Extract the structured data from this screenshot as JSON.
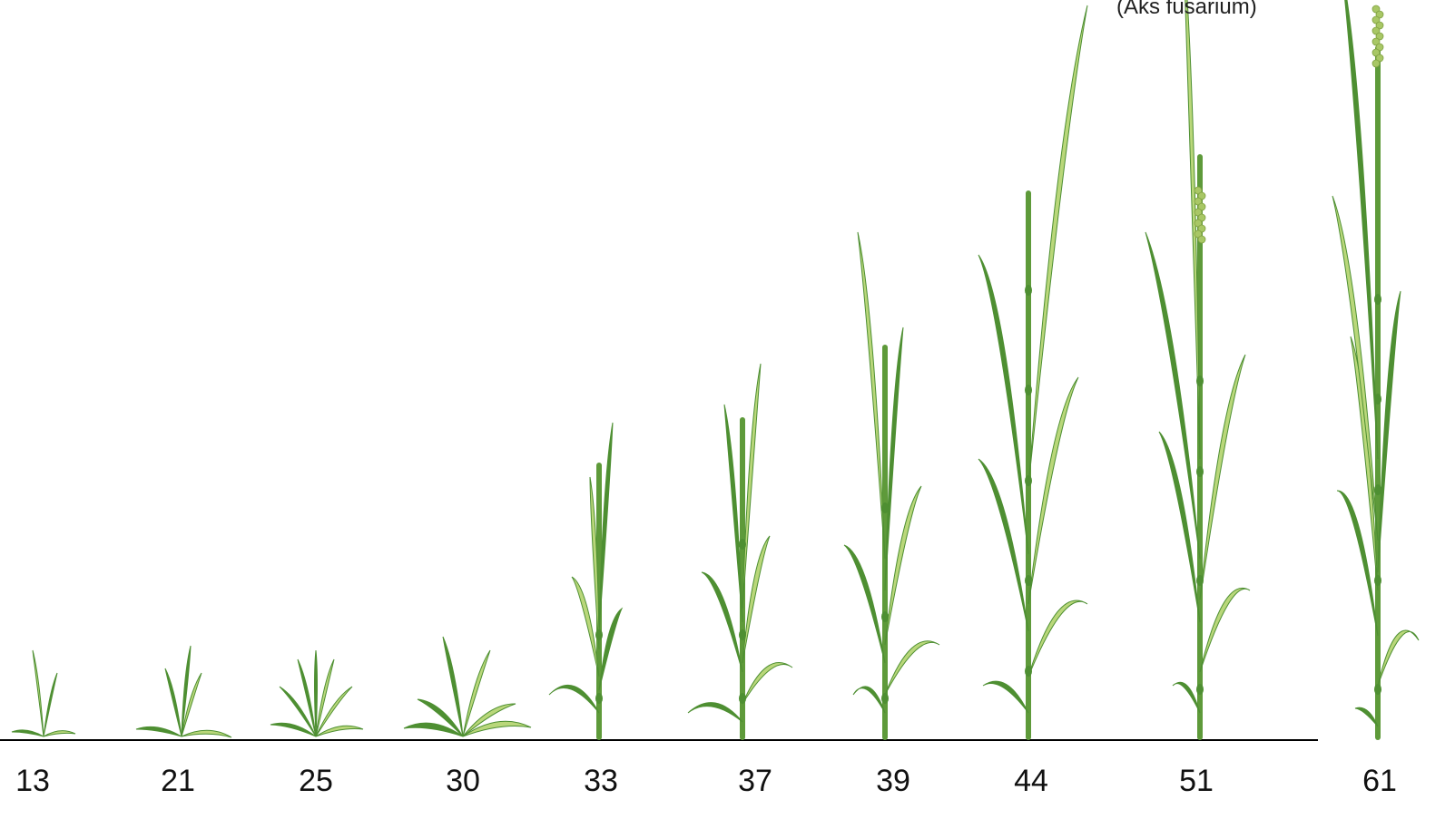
{
  "caption": "(Aks fusarium)",
  "stages": [
    {
      "label": "13"
    },
    {
      "label": "21"
    },
    {
      "label": "25"
    },
    {
      "label": "30"
    },
    {
      "label": "33"
    },
    {
      "label": "37"
    },
    {
      "label": "39"
    },
    {
      "label": "44"
    },
    {
      "label": "51"
    },
    {
      "label": "61"
    }
  ],
  "colors": {
    "stem": "#5e9a3a",
    "leaf_dark": "#4e8f32",
    "leaf_light": "#b9d77a",
    "ear": "#a8c765",
    "ground": "#000000"
  }
}
